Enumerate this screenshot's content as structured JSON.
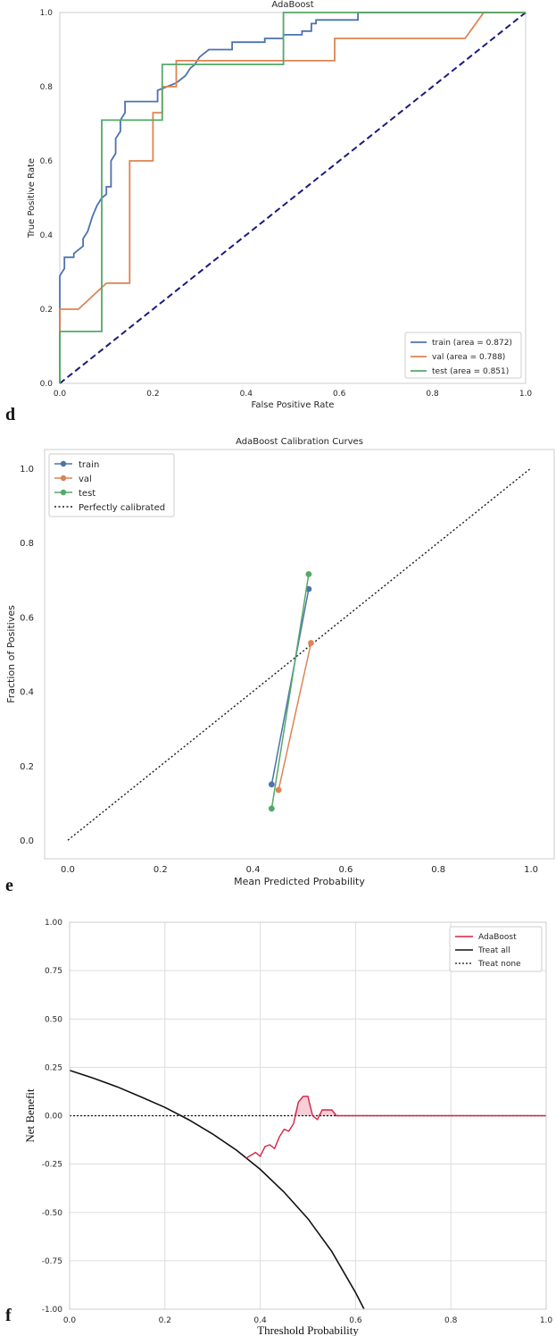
{
  "chart_data": [
    {
      "type": "line",
      "panel_letter": "d",
      "title": "AdaBoost",
      "xlabel": "False Positive Rate",
      "ylabel": "True Positive Rate",
      "xlim": [
        0,
        1
      ],
      "ylim": [
        0,
        1
      ],
      "xticks": [
        "0.0",
        "0.2",
        "0.4",
        "0.6",
        "0.8",
        "1.0"
      ],
      "yticks": [
        "0.0",
        "0.2",
        "0.4",
        "0.6",
        "0.8",
        "1.0"
      ],
      "legend_position": "bottom-right",
      "series": [
        {
          "name": "train (area = 0.872)",
          "color": "#4c72b0",
          "x": [
            0,
            0,
            0.01,
            0.01,
            0.03,
            0.03,
            0.04,
            0.05,
            0.05,
            0.06,
            0.07,
            0.08,
            0.09,
            0.1,
            0.1,
            0.11,
            0.11,
            0.12,
            0.12,
            0.13,
            0.13,
            0.14,
            0.14,
            0.21,
            0.21,
            0.23,
            0.25,
            0.27,
            0.28,
            0.29,
            0.3,
            0.32,
            0.37,
            0.37,
            0.44,
            0.44,
            0.48,
            0.48,
            0.52,
            0.52,
            0.54,
            0.54,
            0.55,
            0.55,
            0.64,
            0.64,
            1
          ],
          "y": [
            0,
            0.29,
            0.31,
            0.34,
            0.34,
            0.35,
            0.36,
            0.37,
            0.39,
            0.41,
            0.45,
            0.48,
            0.5,
            0.51,
            0.53,
            0.53,
            0.6,
            0.62,
            0.66,
            0.68,
            0.71,
            0.73,
            0.76,
            0.76,
            0.79,
            0.8,
            0.81,
            0.83,
            0.85,
            0.86,
            0.88,
            0.9,
            0.9,
            0.92,
            0.92,
            0.93,
            0.93,
            0.94,
            0.94,
            0.95,
            0.95,
            0.97,
            0.97,
            0.98,
            0.98,
            1,
            1
          ]
        },
        {
          "name": "val (area = 0.788)",
          "color": "#dd8452",
          "x": [
            0,
            0,
            0.04,
            0.1,
            0.15,
            0.15,
            0.2,
            0.2,
            0.22,
            0.22,
            0.25,
            0.25,
            0.59,
            0.59,
            0.87,
            0.91,
            1
          ],
          "y": [
            0,
            0.2,
            0.2,
            0.27,
            0.27,
            0.6,
            0.6,
            0.73,
            0.73,
            0.8,
            0.8,
            0.87,
            0.87,
            0.93,
            0.93,
            1,
            1
          ],
          "label_note": ""
        },
        {
          "name": "test (area = 0.851)",
          "color": "#55a868",
          "x": [
            0,
            0,
            0.09,
            0.09,
            0.17,
            0.17,
            0.22,
            0.22,
            0.48,
            0.48,
            1
          ],
          "y": [
            0,
            0.14,
            0.14,
            0.71,
            0.71,
            0.71,
            0.71,
            0.86,
            0.86,
            1,
            1
          ]
        }
      ],
      "reference": {
        "name": "chance",
        "color": "#1a1a80",
        "x": [
          0,
          1
        ],
        "y": [
          0,
          1
        ]
      }
    },
    {
      "type": "line",
      "panel_letter": "e",
      "title": "AdaBoost Calibration Curves",
      "xlabel": "Mean Predicted Probability",
      "ylabel": "Fraction of Positives",
      "xlim": [
        -0.05,
        1.05
      ],
      "ylim": [
        -0.05,
        1.05
      ],
      "xticks": [
        "0.0",
        "0.2",
        "0.4",
        "0.6",
        "0.8",
        "1.0"
      ],
      "yticks": [
        "0.0",
        "0.2",
        "0.4",
        "0.6",
        "0.8",
        "1.0"
      ],
      "legend_position": "top-left",
      "series": [
        {
          "name": "train",
          "color": "#4c72b0",
          "x": [
            0.44,
            0.52
          ],
          "y": [
            0.15,
            0.675
          ]
        },
        {
          "name": "val",
          "color": "#dd8452",
          "x": [
            0.455,
            0.525
          ],
          "y": [
            0.135,
            0.53
          ]
        },
        {
          "name": "test",
          "color": "#55a868",
          "x": [
            0.44,
            0.52
          ],
          "y": [
            0.085,
            0.715
          ]
        }
      ],
      "reference": {
        "name": "Perfectly calibrated",
        "color": "#1a1a1a",
        "x": [
          0,
          1
        ],
        "y": [
          0,
          1
        ]
      }
    },
    {
      "type": "line",
      "panel_letter": "f",
      "title": "",
      "xlabel": "Threshold Probability",
      "ylabel": "Net Benefit",
      "xlim": [
        0,
        1
      ],
      "ylim": [
        -1,
        1
      ],
      "xticks": [
        "0.0",
        "0.2",
        "0.4",
        "0.6",
        "0.8",
        "1.0"
      ],
      "yticks": [
        "1.00",
        "0.75",
        "0.50",
        "0.25",
        "0.00",
        "-0.25",
        "-0.50",
        "-0.75",
        "-1.00"
      ],
      "legend_position": "top-right",
      "series": [
        {
          "name": "AdaBoost",
          "color": "#d62246",
          "x": [
            0.37,
            0.39,
            0.4,
            0.41,
            0.42,
            0.43,
            0.44,
            0.45,
            0.46,
            0.47,
            0.48,
            0.49,
            0.5,
            0.51,
            0.52,
            0.53,
            0.54,
            0.55,
            0.56,
            0.6,
            0.7,
            0.8,
            0.9,
            1.0
          ],
          "y": [
            -0.22,
            -0.19,
            -0.21,
            -0.16,
            -0.15,
            -0.17,
            -0.11,
            -0.07,
            -0.08,
            -0.04,
            0.07,
            0.1,
            0.1,
            0.0,
            -0.02,
            0.03,
            0.03,
            0.03,
            0.0,
            0.0,
            0.0,
            0.0,
            0.0,
            0.0
          ]
        },
        {
          "name": "Treat all",
          "color": "#111111",
          "x": [
            0,
            0.05,
            0.1,
            0.15,
            0.2,
            0.25,
            0.3,
            0.35,
            0.4,
            0.45,
            0.5,
            0.55,
            0.6,
            0.618
          ],
          "y": [
            0.234,
            0.194,
            0.149,
            0.097,
            0.043,
            -0.021,
            -0.094,
            -0.178,
            -0.277,
            -0.395,
            -0.532,
            -0.701,
            -0.914,
            -1.0
          ]
        },
        {
          "name": "Treat none",
          "color": "#111111",
          "x": [
            0,
            1
          ],
          "y": [
            0,
            0
          ]
        }
      ]
    }
  ]
}
